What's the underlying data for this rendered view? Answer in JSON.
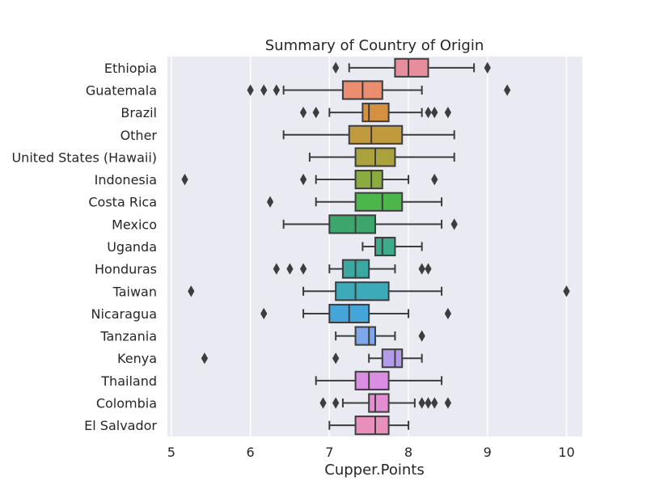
{
  "chart_data": {
    "type": "box",
    "title": "Summary of Country of Origin",
    "xlabel": "Cupper.Points",
    "ylabel": "",
    "xlim": [
      4.95,
      10.2
    ],
    "xticks": [
      5,
      6,
      7,
      8,
      9,
      10
    ],
    "grid": true,
    "orientation": "horizontal",
    "categories": [
      {
        "name": "Ethiopia",
        "color": "#e88d9c",
        "whisker_low": 7.25,
        "q1": 7.83,
        "median": 8.0,
        "q3": 8.25,
        "whisker_high": 8.83,
        "outliers": [
          7.08,
          9.0
        ]
      },
      {
        "name": "Guatemala",
        "color": "#ea8e6f",
        "whisker_low": 6.42,
        "q1": 7.17,
        "median": 7.42,
        "q3": 7.67,
        "whisker_high": 8.17,
        "outliers": [
          6.0,
          6.17,
          6.33,
          9.25
        ]
      },
      {
        "name": "Brazil",
        "color": "#d5913f",
        "whisker_low": 7.0,
        "q1": 7.42,
        "median": 7.5,
        "q3": 7.75,
        "whisker_high": 8.17,
        "outliers": [
          6.67,
          6.83,
          8.25,
          8.33,
          8.5
        ]
      },
      {
        "name": "Other",
        "color": "#c29a3e",
        "whisker_low": 6.42,
        "q1": 7.25,
        "median": 7.53,
        "q3": 7.92,
        "whisker_high": 8.58,
        "outliers": []
      },
      {
        "name": "United States (Hawaii)",
        "color": "#a9a23d",
        "whisker_low": 6.75,
        "q1": 7.33,
        "median": 7.58,
        "q3": 7.83,
        "whisker_high": 8.58,
        "outliers": []
      },
      {
        "name": "Indonesia",
        "color": "#8aab3e",
        "whisker_low": 6.83,
        "q1": 7.33,
        "median": 7.53,
        "q3": 7.67,
        "whisker_high": 8.0,
        "outliers": [
          5.17,
          6.67,
          8.33
        ]
      },
      {
        "name": "Costa Rica",
        "color": "#4db64a",
        "whisker_low": 6.83,
        "q1": 7.33,
        "median": 7.67,
        "q3": 7.92,
        "whisker_high": 8.42,
        "outliers": [
          6.25
        ]
      },
      {
        "name": "Mexico",
        "color": "#3da66c",
        "whisker_low": 6.42,
        "q1": 7.0,
        "median": 7.33,
        "q3": 7.58,
        "whisker_high": 8.42,
        "outliers": [
          8.58
        ]
      },
      {
        "name": "Uganda",
        "color": "#3daa8c",
        "whisker_low": 7.42,
        "q1": 7.58,
        "median": 7.67,
        "q3": 7.83,
        "whisker_high": 8.17,
        "outliers": []
      },
      {
        "name": "Honduras",
        "color": "#3aa9a2",
        "whisker_low": 7.0,
        "q1": 7.17,
        "median": 7.33,
        "q3": 7.5,
        "whisker_high": 7.83,
        "outliers": [
          6.33,
          6.5,
          6.67,
          8.17,
          8.25
        ]
      },
      {
        "name": "Taiwan",
        "color": "#3caab9",
        "whisker_low": 6.67,
        "q1": 7.08,
        "median": 7.33,
        "q3": 7.75,
        "whisker_high": 8.42,
        "outliers": [
          5.25,
          10.0
        ]
      },
      {
        "name": "Nicaragua",
        "color": "#45a4d8",
        "whisker_low": 6.67,
        "q1": 7.0,
        "median": 7.25,
        "q3": 7.5,
        "whisker_high": 8.0,
        "outliers": [
          6.17,
          8.5
        ]
      },
      {
        "name": "Tanzania",
        "color": "#7ea7ea",
        "whisker_low": 7.08,
        "q1": 7.33,
        "median": 7.5,
        "q3": 7.58,
        "whisker_high": 7.83,
        "outliers": [
          8.17
        ]
      },
      {
        "name": "Kenya",
        "color": "#b49be8",
        "whisker_low": 7.5,
        "q1": 7.67,
        "median": 7.83,
        "q3": 7.92,
        "whisker_high": 8.17,
        "outliers": [
          5.42,
          7.08
        ]
      },
      {
        "name": "Thailand",
        "color": "#d98ee4",
        "whisker_low": 6.83,
        "q1": 7.33,
        "median": 7.5,
        "q3": 7.75,
        "whisker_high": 8.42,
        "outliers": []
      },
      {
        "name": "Colombia",
        "color": "#e48dd1",
        "whisker_low": 7.17,
        "q1": 7.5,
        "median": 7.58,
        "q3": 7.75,
        "whisker_high": 8.08,
        "outliers": [
          6.92,
          7.08,
          8.17,
          8.25,
          8.33,
          8.5
        ]
      },
      {
        "name": "El Salvador",
        "color": "#e88fbc",
        "whisker_low": 7.0,
        "q1": 7.33,
        "median": 7.58,
        "q3": 7.75,
        "whisker_high": 8.0,
        "outliers": []
      }
    ]
  },
  "colors": {
    "plot_background": "#eaeaf2",
    "grid": "#ffffff",
    "line": "#3d3d3d"
  }
}
